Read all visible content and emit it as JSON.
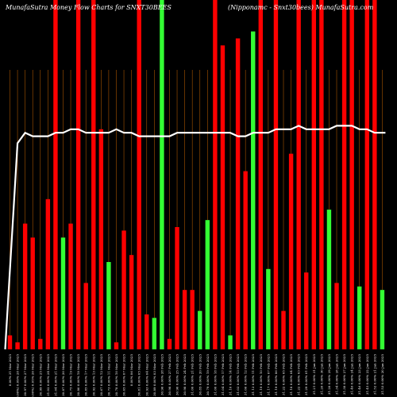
{
  "chart_data": {
    "type": "bar",
    "title_left": "MunafaSutra Money Flow Charts for SNXT30BEES",
    "title_right": "(Nipponamc - Snxt30bees) MunafaSutra.com",
    "categories": [
      "31 Mar 2025",
      "28 Mar 2025",
      "27 Mar 2025",
      "26 Mar 2025",
      "25 Mar 2025",
      "24 Mar 2025",
      "21 Mar 2025",
      "20 Mar 2025",
      "19 Mar 2025",
      "18 Mar 2025",
      "17 Mar 2025",
      "13 Mar 2025",
      "12 Mar 2025",
      "11 Mar 2025",
      "10 Mar 2025",
      "07 Mar 2025",
      "06 Mar 2025",
      "05 Mar 2025",
      "04 Mar 2025",
      "03 Mar 2025",
      "28 Feb 2025",
      "27 Feb 2025",
      "25 Feb 2025",
      "24 Feb 2025",
      "21 Feb 2025",
      "20 Feb 2025",
      "19 Feb 2025",
      "18 Feb 2025",
      "17 Feb 2025",
      "14 Feb 2025",
      "13 Feb 2025",
      "12 Feb 2025",
      "11 Feb 2025",
      "10 Feb 2025",
      "07 Feb 2025",
      "06 Feb 2025",
      "05 Feb 2025",
      "04 Feb 2025",
      "03 Feb 2025",
      "01 Feb 2025",
      "31 Jan 2025",
      "30 Jan 2025",
      "29 Jan 2025",
      "28 Jan 2025",
      "27 Jan 2025",
      "24 Jan 2025",
      "23 Jan 2025",
      "22 Jan 2025",
      "21 Jan 2025",
      "20 Jan 2025"
    ],
    "tick_labels": [
      "0.00%",
      "(0.00%) 0.09%",
      "30.97 0.00%",
      "(0.00%) 0.05%",
      "30.99 0.00%",
      "31.02 0.00%",
      "31.04 0.00%",
      "30.87 0.00%",
      "30.75 0.00%",
      "30.80 0.00%",
      "30.85 0.00%",
      "30.92 0.00%",
      "30.67 0.00%",
      "30.73 0.00%",
      "30.78 0.00%",
      "30.65 0.00%",
      "0.00%",
      "30.81 0.00%",
      "30.93 0.00%",
      "30.89 0.00%",
      "30.96 0.00%",
      "30.98 0.00%",
      "30.90 0.00%",
      "30.98 0.00%",
      "31.00 0.00%",
      "30.85 0.00%",
      "30.79 0.00%",
      "31.00 0.00%",
      "31.04 0.00%",
      "31.10 0.00%",
      "31.03 0.00%",
      "31.06 0.00%",
      "31.13 0.00%",
      "31.19 0.00%",
      "31.17 0.00%",
      "31.19 0.00%",
      "31.22 0.00%",
      "31.18 0.00%",
      "31.22 0.00%",
      "31.29 0.00%",
      "31.21 0.00%",
      "31.26 0.00%",
      "31.28 0.00%",
      "31.34 0.00%",
      "31.38 0.00%",
      "31.40 0.00%",
      "31.46 0.00%",
      "31.45 0.00%",
      "31.52 0.00%",
      "31.53 0.00%"
    ],
    "values": [
      4,
      2,
      36,
      32,
      3,
      43,
      100,
      32,
      36,
      100,
      19,
      100,
      63,
      25,
      2,
      34,
      27,
      100,
      10,
      9,
      100,
      3,
      35,
      17,
      17,
      11,
      37,
      100,
      87,
      4,
      89,
      51,
      91,
      100,
      23,
      100,
      11,
      56,
      100,
      22,
      100,
      100,
      40,
      19,
      100,
      100,
      18,
      100,
      100,
      17
    ],
    "colors": [
      "red",
      "red",
      "red",
      "red",
      "red",
      "red",
      "red",
      "green",
      "red",
      "red",
      "red",
      "red",
      "red",
      "green",
      "red",
      "red",
      "red",
      "red",
      "red",
      "green",
      "green",
      "red",
      "red",
      "red",
      "red",
      "green",
      "green",
      "red",
      "red",
      "green",
      "red",
      "red",
      "green",
      "red",
      "green",
      "red",
      "red",
      "red",
      "red",
      "red",
      "red",
      "red",
      "green",
      "red",
      "red",
      "red",
      "green",
      "red",
      "red",
      "green"
    ],
    "line": [
      0,
      59,
      62,
      61,
      61,
      61,
      62,
      62,
      63,
      63,
      62,
      62,
      62,
      62,
      63,
      62,
      62,
      61,
      61,
      61,
      61,
      61,
      62,
      62,
      62,
      62,
      62,
      62,
      62,
      62,
      61,
      61,
      62,
      62,
      62,
      63,
      63,
      63,
      64,
      63,
      63,
      63,
      63,
      64,
      64,
      64,
      63,
      63,
      62,
      62
    ],
    "ylim": [
      0,
      100
    ],
    "series_colors": {
      "red": "#ff0000",
      "green": "#33ff33",
      "line": "#ffffff",
      "grid": "#a85400"
    }
  }
}
